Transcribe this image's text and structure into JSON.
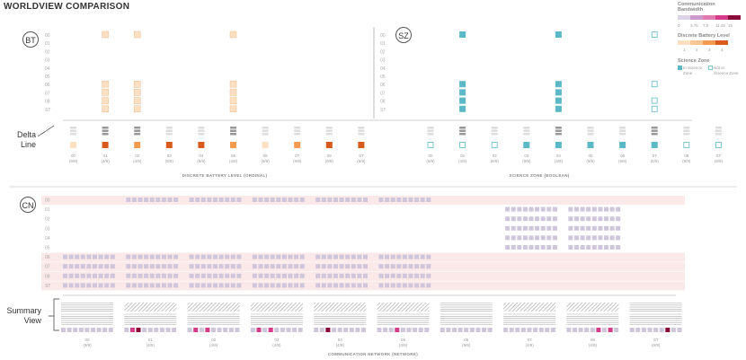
{
  "title": "WORLDVIEW COMPARISON",
  "legend": {
    "comm": {
      "title_line1": "Communication",
      "title_line2": "Bandwidth",
      "ticks": [
        "0",
        "3.75",
        "7.5",
        "11.25",
        "15"
      ],
      "colors": [
        "#ddd3e6",
        "#cc99cc",
        "#e07ab0",
        "#d63a8a",
        "#8a0a3a"
      ]
    },
    "battery": {
      "title": "Discrete Battery Level",
      "ticks": [
        "1",
        "2",
        "3",
        "4"
      ],
      "colors": [
        "#fde0c2",
        "#f9c592",
        "#f29a4e",
        "#d85a1c"
      ]
    },
    "science": {
      "title": "Science Zone",
      "in_label": "In Science Zone",
      "out_label": "Not In Science Zone",
      "in_color": "#5bb8c6",
      "out_stroke": "#5bb8c6"
    }
  },
  "rows": [
    "00",
    "01",
    "02",
    "03",
    "04",
    "05",
    "06",
    "07",
    "08",
    "ST"
  ],
  "bt": {
    "badge": "BT",
    "caption": "DISCRETE BATTERY LEVEL (ORDINAL)",
    "cols": [
      {
        "label": "00",
        "ratio": "(9/9)",
        "level": 1,
        "cells": []
      },
      {
        "label": "01",
        "ratio": "(4/9)",
        "level": 1,
        "cells": [
          0,
          6,
          7,
          8,
          9
        ]
      },
      {
        "label": "02",
        "ratio": "(4/9)",
        "level": 1,
        "cells": [
          0,
          6,
          7,
          8,
          9
        ]
      },
      {
        "label": "03",
        "ratio": "(9/9)",
        "level": 1,
        "cells": []
      },
      {
        "label": "04",
        "ratio": "(9/9)",
        "level": 1,
        "cells": []
      },
      {
        "label": "05",
        "ratio": "(4/9)",
        "level": 1,
        "cells": [
          0,
          6,
          7,
          8,
          9
        ]
      },
      {
        "label": "06",
        "ratio": "(9/9)",
        "level": 1,
        "cells": []
      },
      {
        "label": "07",
        "ratio": "(9/9)",
        "level": 1,
        "cells": []
      },
      {
        "label": "08",
        "ratio": "(9/9)",
        "level": 1,
        "cells": []
      },
      {
        "label": "ST",
        "ratio": "(9/9)",
        "level": 1,
        "cells": []
      }
    ],
    "delta_levels": [
      1,
      4,
      3,
      4,
      4,
      3,
      1,
      3,
      4,
      4
    ],
    "delta_hatch": [
      false,
      true,
      true,
      false,
      false,
      true,
      false,
      false,
      false,
      false
    ]
  },
  "sz": {
    "badge": "SZ",
    "caption": "SCIENCE ZONE (BOOLEAN)",
    "cols": [
      {
        "label": "00",
        "ratio": "(9/9)",
        "in": [],
        "out": []
      },
      {
        "label": "01",
        "ratio": "(4/9)",
        "in": [
          0,
          6,
          7,
          8,
          9
        ],
        "out": []
      },
      {
        "label": "02",
        "ratio": "(9/9)",
        "in": [],
        "out": []
      },
      {
        "label": "03",
        "ratio": "(9/9)",
        "in": [],
        "out": []
      },
      {
        "label": "04",
        "ratio": "(4/9)",
        "in": [
          0,
          6,
          7,
          8,
          9
        ],
        "out": []
      },
      {
        "label": "05",
        "ratio": "(9/9)",
        "in": [],
        "out": []
      },
      {
        "label": "06",
        "ratio": "(9/9)",
        "in": [],
        "out": []
      },
      {
        "label": "07",
        "ratio": "(5/9)",
        "in": [],
        "out": [
          0,
          6,
          8,
          9
        ]
      },
      {
        "label": "08",
        "ratio": "(9/9)",
        "in": [],
        "out": []
      },
      {
        "label": "ST",
        "ratio": "(9/9)",
        "in": [],
        "out": []
      }
    ],
    "delta_in": [
      false,
      false,
      false,
      true,
      true,
      true,
      true,
      true,
      false,
      false
    ],
    "delta_hatch": [
      false,
      true,
      false,
      false,
      true,
      false,
      false,
      true,
      false,
      false
    ]
  },
  "cn": {
    "badge": "CN",
    "caption": "COMMUNICATION NETWORK (NETWORK)",
    "highlight_rows": [
      0,
      6,
      7,
      8,
      9
    ],
    "row_cells": [
      [
        1,
        2,
        3,
        4,
        5
      ],
      [
        7,
        8
      ],
      [
        7,
        8
      ],
      [
        7,
        8
      ],
      [
        7,
        8
      ],
      [
        7,
        8
      ],
      [
        0,
        1,
        2,
        3,
        4,
        5
      ],
      [
        0,
        1,
        2,
        3,
        4,
        5
      ],
      [
        0,
        1,
        2,
        3,
        4,
        5
      ],
      [
        0,
        1,
        2,
        3,
        4,
        5
      ]
    ],
    "summary": [
      {
        "label": "00",
        "ratio": "(9/9)",
        "hatch": false,
        "dark": []
      },
      {
        "label": "01",
        "ratio": "(4/9)",
        "hatch": true,
        "dark": [
          1,
          2
        ]
      },
      {
        "label": "02",
        "ratio": "(4/9)",
        "hatch": true,
        "dark": [
          1,
          3
        ]
      },
      {
        "label": "03",
        "ratio": "(4/9)",
        "hatch": true,
        "dark": [
          1,
          3
        ]
      },
      {
        "label": "04",
        "ratio": "(4/9)",
        "hatch": true,
        "dark": [
          2
        ]
      },
      {
        "label": "05",
        "ratio": "(4/9)",
        "hatch": true,
        "dark": [
          3
        ]
      },
      {
        "label": "06",
        "ratio": "(9/9)",
        "hatch": false,
        "dark": []
      },
      {
        "label": "07",
        "ratio": "(4/9)",
        "hatch": true,
        "dark": []
      },
      {
        "label": "08",
        "ratio": "(4/9)",
        "hatch": true,
        "dark": [
          5,
          7
        ]
      },
      {
        "label": "ST",
        "ratio": "(9/9)",
        "hatch": false,
        "dark": [
          6
        ]
      }
    ]
  },
  "annotations": {
    "delta_line": "Delta\nLine",
    "summary_view": "Summary\nView"
  }
}
